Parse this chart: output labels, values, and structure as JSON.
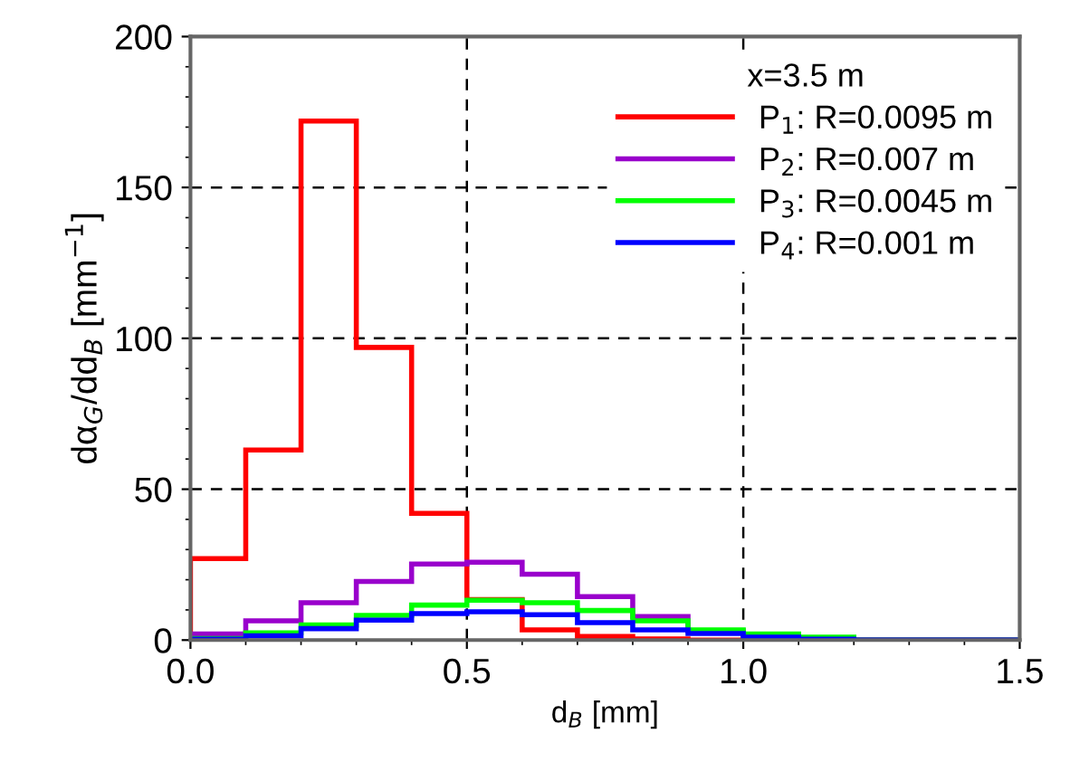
{
  "chart_data": {
    "type": "histogram",
    "xlabel": "d$_{B}$ [mm]",
    "ylabel": "dα$_{G}$/dd$_{B}$ [mm$^{−1}$]",
    "legend_title": "x=3.5 m",
    "bins": [
      0,
      0.1,
      0.2,
      0.3,
      0.4,
      0.5,
      0.6,
      0.7,
      0.8,
      0.9,
      1.0,
      1.1,
      1.2,
      1.3,
      1.4,
      1.5
    ],
    "series": [
      {
        "name": "P$_{1}$: R=0.0095 m",
        "color": "#ff0000",
        "values": [
          27,
          63,
          172,
          97,
          42,
          13.4,
          3.4,
          1.2,
          0.4,
          0,
          0,
          0,
          0,
          0,
          0
        ]
      },
      {
        "name": "P$_{2}$: R=0.007 m",
        "color": "#9900cc",
        "values": [
          2,
          6.4,
          12.4,
          19.4,
          25.2,
          25.8,
          21.8,
          14.4,
          7.8,
          3,
          1.5,
          0.5,
          0,
          0,
          0
        ]
      },
      {
        "name": "P$_{3}$: R=0.0045 m",
        "color": "#00ff00",
        "values": [
          0.5,
          2.4,
          5,
          8.2,
          11.6,
          13.2,
          12.4,
          9.8,
          6.4,
          3.4,
          2,
          1,
          0,
          0,
          0
        ]
      },
      {
        "name": "P$_{4}$: R=0.001 m",
        "color": "#0000ff",
        "values": [
          0.3,
          1.4,
          3.8,
          6.6,
          8.8,
          9.4,
          8.4,
          5.8,
          3.4,
          2.2,
          1,
          0.3,
          0,
          0,
          0
        ]
      }
    ],
    "xlim": [
      0,
      1.5
    ],
    "xticks": [
      {
        "value": 0,
        "label": "0.0"
      },
      0.5,
      {
        "value": 1,
        "label": "1.0"
      },
      1.5
    ],
    "ylim": [
      0,
      200
    ],
    "yticks": [
      0,
      50,
      100,
      150,
      200
    ],
    "grid": true,
    "legend": "top right"
  }
}
